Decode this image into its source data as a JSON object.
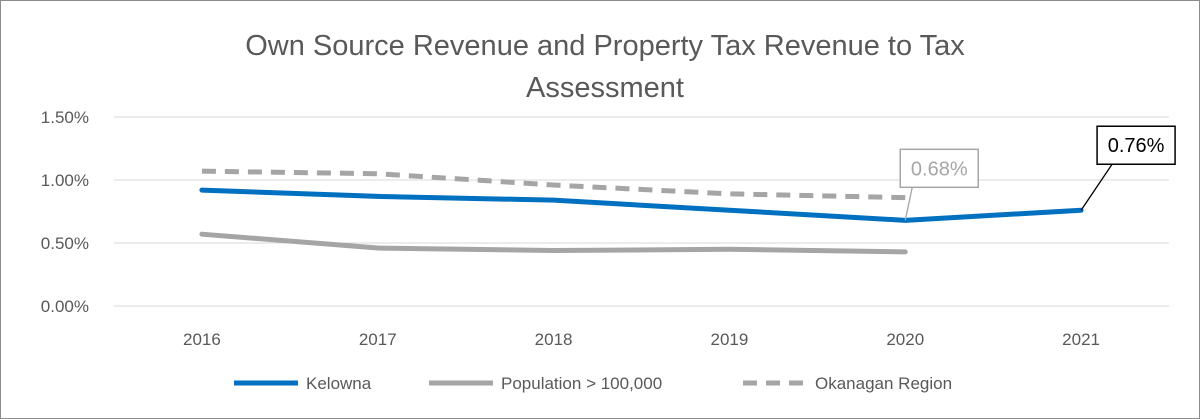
{
  "chart_data": {
    "type": "line",
    "title_lines": [
      "Own Source Revenue and Property Tax Revenue to Tax",
      "Assessment"
    ],
    "categories": [
      "2016",
      "2017",
      "2018",
      "2019",
      "2020",
      "2021"
    ],
    "ylim": [
      0,
      0.015
    ],
    "yticks": [
      "0.00%",
      "0.50%",
      "1.00%",
      "1.50%"
    ],
    "ytick_values": [
      0,
      0.005,
      0.01,
      0.015
    ],
    "grid": true,
    "legend_position": "bottom",
    "series": [
      {
        "name": "Kelowna",
        "values": [
          0.0092,
          0.0087,
          0.0084,
          0.0076,
          0.0068,
          0.0076
        ],
        "color": "#0070C0",
        "dash": "solid"
      },
      {
        "name": "Population > 100,000",
        "values": [
          0.0057,
          0.0046,
          0.0044,
          0.0045,
          0.0043,
          null
        ],
        "color": "#A5A5A5",
        "dash": "solid"
      },
      {
        "name": "Okanagan Region",
        "values": [
          0.0107,
          0.0105,
          0.0096,
          0.0089,
          0.0086,
          null
        ],
        "color": "#A5A5A5",
        "dash": "dashed"
      }
    ],
    "annotations": [
      {
        "text": "0.68%",
        "series": "Kelowna",
        "category": "2020",
        "style": "gray"
      },
      {
        "text": "0.76%",
        "series": "Kelowna",
        "category": "2021",
        "style": "black"
      }
    ]
  }
}
